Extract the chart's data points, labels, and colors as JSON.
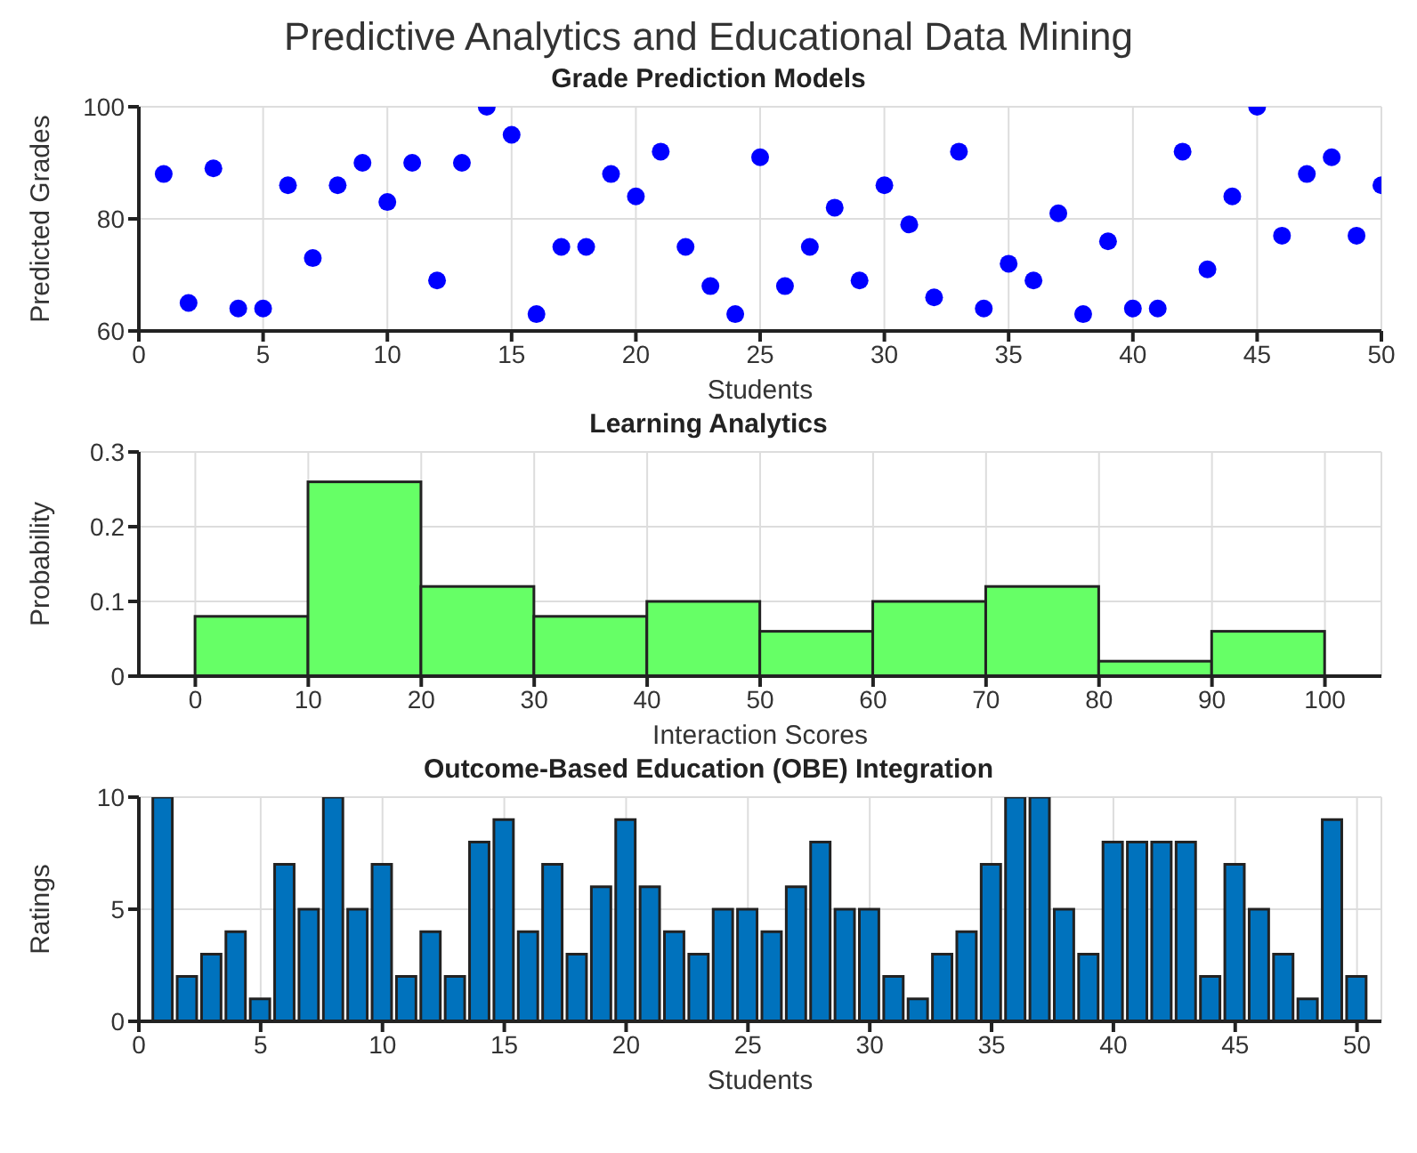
{
  "chart_data": [
    {
      "type": "scatter",
      "title": "Predictive Analytics and Educational Data Mining",
      "subtitle": "Grade Prediction Models",
      "xlabel": "Students",
      "ylabel": "Predicted Grades",
      "color": "#0000ff",
      "marker": "circle",
      "x": [
        1,
        2,
        3,
        4,
        5,
        6,
        7,
        8,
        9,
        10,
        11,
        12,
        13,
        14,
        15,
        16,
        17,
        18,
        19,
        20,
        21,
        22,
        23,
        24,
        25,
        26,
        27,
        28,
        29,
        30,
        31,
        32,
        33,
        34,
        35,
        36,
        37,
        38,
        39,
        40,
        41,
        42,
        43,
        44,
        45,
        46,
        47,
        48,
        49,
        50
      ],
      "values": [
        88,
        65,
        89,
        64,
        64,
        86,
        73,
        86,
        90,
        83,
        90,
        69,
        90,
        100,
        95,
        63,
        75,
        75,
        88,
        84,
        92,
        75,
        68,
        63,
        91,
        68,
        75,
        82,
        69,
        86,
        79,
        66,
        92,
        64,
        72,
        69,
        81,
        63,
        76,
        64,
        64,
        92,
        71,
        84,
        100,
        77,
        88,
        91,
        77,
        86
      ],
      "xlim": [
        0,
        50
      ],
      "xticks": [
        0,
        5,
        10,
        15,
        20,
        25,
        30,
        35,
        40,
        45,
        50
      ],
      "ylim": [
        60,
        100
      ],
      "yticks": [
        60,
        80,
        100
      ],
      "grid": true
    },
    {
      "type": "histogram",
      "title": "Learning Analytics",
      "xlabel": "Interaction Scores",
      "ylabel": "Probability",
      "color": "#66ff66",
      "bins": [
        0,
        10,
        20,
        30,
        40,
        50,
        60,
        70,
        80,
        90,
        100
      ],
      "values": [
        0.08,
        0.26,
        0.12,
        0.08,
        0.1,
        0.06,
        0.1,
        0.12,
        0.02,
        0.06
      ],
      "xlim": [
        -5,
        105
      ],
      "xticks": [
        0,
        10,
        20,
        30,
        40,
        50,
        60,
        70,
        80,
        90,
        100
      ],
      "ylim": [
        0,
        0.3
      ],
      "yticks": [
        0,
        0.1,
        0.2,
        0.3
      ],
      "grid": true
    },
    {
      "type": "bar",
      "title": "Outcome-Based Education (OBE) Integration",
      "xlabel": "Students",
      "ylabel": "Ratings",
      "color": "#0072bd",
      "x": [
        1,
        2,
        3,
        4,
        5,
        6,
        7,
        8,
        9,
        10,
        11,
        12,
        13,
        14,
        15,
        16,
        17,
        18,
        19,
        20,
        21,
        22,
        23,
        24,
        25,
        26,
        27,
        28,
        29,
        30,
        31,
        32,
        33,
        34,
        35,
        36,
        37,
        38,
        39,
        40,
        41,
        42,
        43,
        44,
        45,
        46,
        47,
        48,
        49,
        50
      ],
      "values": [
        10,
        2,
        3,
        4,
        1,
        7,
        5,
        10,
        5,
        7,
        2,
        4,
        2,
        8,
        9,
        4,
        7,
        3,
        6,
        9,
        6,
        4,
        3,
        5,
        5,
        4,
        6,
        8,
        5,
        5,
        2,
        1,
        3,
        4,
        7,
        10,
        10,
        5,
        3,
        8,
        8,
        8,
        8,
        2,
        7,
        5,
        3,
        1,
        9,
        2
      ],
      "xlim": [
        0,
        51
      ],
      "xticks": [
        0,
        5,
        10,
        15,
        20,
        25,
        30,
        35,
        40,
        45,
        50
      ],
      "ylim": [
        0,
        10
      ],
      "yticks": [
        0,
        5,
        10
      ],
      "grid": true
    }
  ]
}
